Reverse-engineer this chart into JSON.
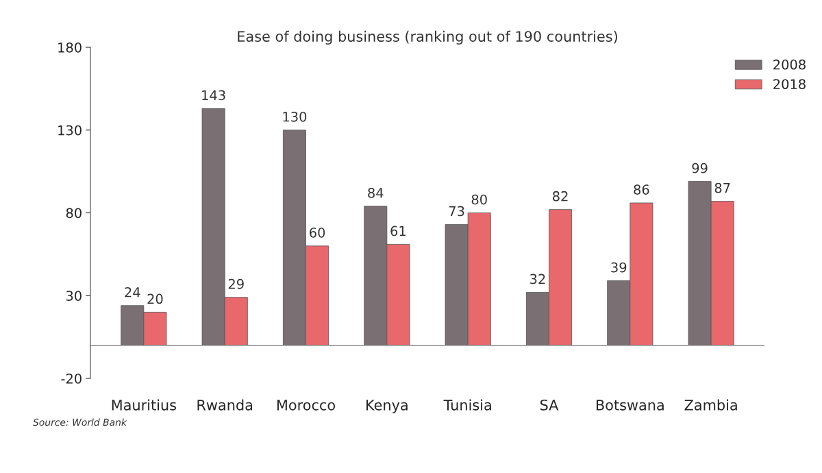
{
  "chart_data": {
    "type": "bar",
    "title": "Ease of doing business (ranking out of 190 countries)",
    "categories": [
      "Mauritius",
      "Rwanda",
      "Morocco",
      "Kenya",
      "Tunisia",
      "SA",
      "Botswana",
      "Zambia"
    ],
    "series": [
      {
        "name": "2008",
        "color": "#7a6f73",
        "values": [
          24,
          143,
          130,
          84,
          73,
          32,
          39,
          99
        ]
      },
      {
        "name": "2018",
        "color": "#e8686b",
        "values": [
          20,
          29,
          60,
          61,
          80,
          82,
          86,
          87
        ]
      }
    ],
    "ylim": [
      -20,
      180
    ],
    "yticks": [
      -20,
      30,
      80,
      130,
      180
    ],
    "data_labels": true,
    "grid": false,
    "legend": "top right",
    "annotations": [
      "Source: World Bank"
    ]
  }
}
